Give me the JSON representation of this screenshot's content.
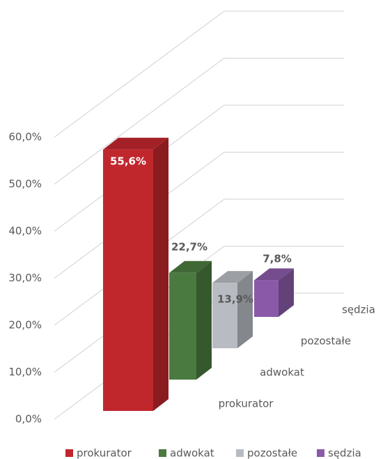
{
  "chart_data": {
    "type": "bar3d",
    "categories": [
      "prokurator",
      "adwokat",
      "pozostałe",
      "sędzia"
    ],
    "values": [
      55.6,
      22.7,
      13.9,
      7.8
    ],
    "value_labels": [
      "55,6%",
      "22,7%",
      "13,9%",
      "7,8%"
    ],
    "colors": [
      "#c0272d",
      "#4a7a3f",
      "#b8bcc2",
      "#8a5aa8"
    ],
    "ylim": [
      0,
      60
    ],
    "yticks": [
      {
        "value": 0,
        "label": "0,0%"
      },
      {
        "value": 10,
        "label": "10,0%"
      },
      {
        "value": 20,
        "label": "20,0%"
      },
      {
        "value": 30,
        "label": "30,0%"
      },
      {
        "value": 40,
        "label": "40,0%"
      },
      {
        "value": 50,
        "label": "50,0%"
      },
      {
        "value": 60,
        "label": "60,0%"
      }
    ],
    "grid": true,
    "legend": "bottom"
  }
}
